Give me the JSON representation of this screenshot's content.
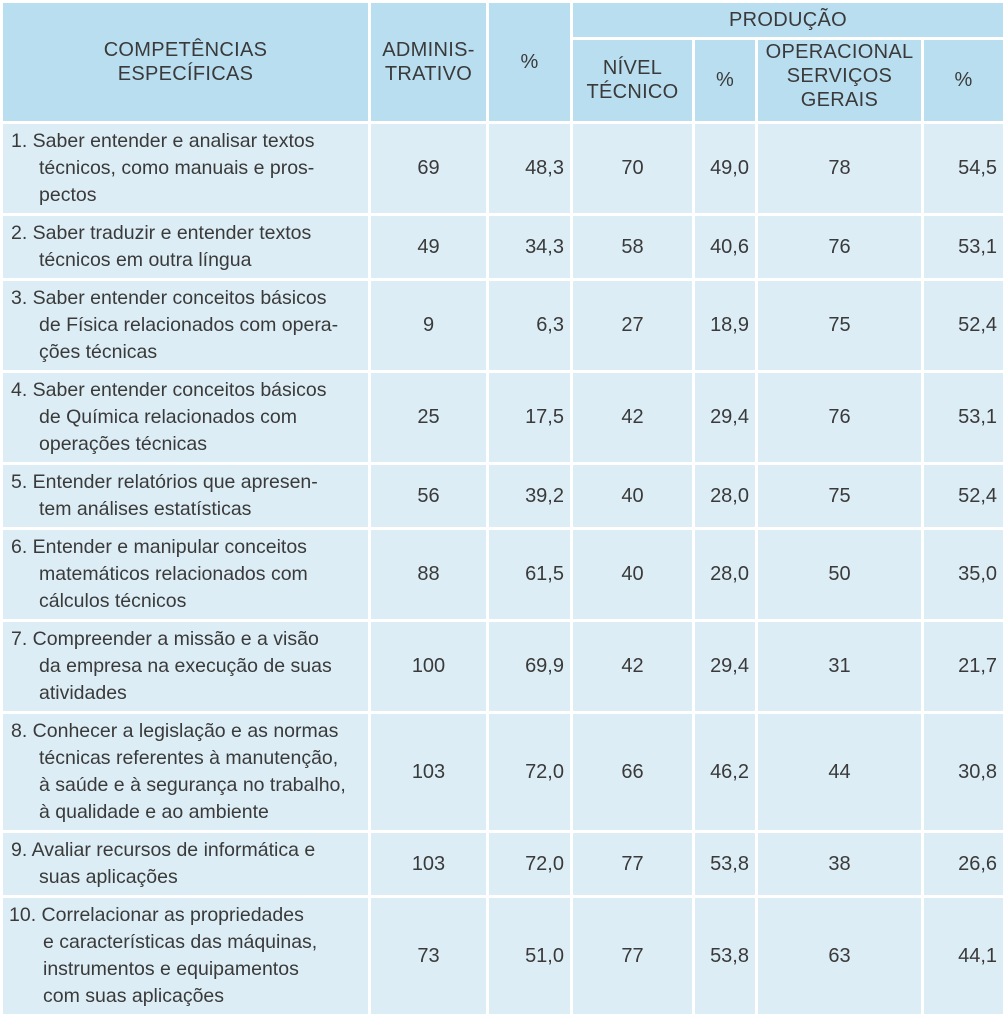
{
  "header": {
    "competencias": [
      "COMPETÊNCIAS",
      "ESPECÍFICAS"
    ],
    "administrativo": [
      "ADMINIS-",
      "TRATIVO"
    ],
    "pct": "%",
    "producao": "PRODUÇÃO",
    "nivel_tecnico": [
      "NÍVEL",
      "TÉCNICO"
    ],
    "operacional": [
      "OPERACIONAL",
      "SERVIÇOS",
      "GERAIS"
    ]
  },
  "rows": [
    {
      "desc": [
        "1. Saber entender e analisar textos",
        "técnicos, como manuais e pros-",
        "pectos"
      ],
      "adm": "69",
      "adm_pct": "48,3",
      "tec": "70",
      "tec_pct": "49,0",
      "op": "78",
      "op_pct": "54,5"
    },
    {
      "desc": [
        "2. Saber traduzir e entender textos",
        "técnicos em outra língua"
      ],
      "adm": "49",
      "adm_pct": "34,3",
      "tec": "58",
      "tec_pct": "40,6",
      "op": "76",
      "op_pct": "53,1"
    },
    {
      "desc": [
        "3. Saber entender conceitos básicos",
        "de Física relacionados com opera-",
        "ções técnicas"
      ],
      "adm": "9",
      "adm_pct": "6,3",
      "tec": "27",
      "tec_pct": "18,9",
      "op": "75",
      "op_pct": "52,4"
    },
    {
      "desc": [
        "4. Saber entender conceitos básicos",
        "de Química relacionados com",
        "operações técnicas"
      ],
      "adm": "25",
      "adm_pct": "17,5",
      "tec": "42",
      "tec_pct": "29,4",
      "op": "76",
      "op_pct": "53,1"
    },
    {
      "desc": [
        "5. Entender relatórios que apresen-",
        "tem análises estatísticas"
      ],
      "adm": "56",
      "adm_pct": "39,2",
      "tec": "40",
      "tec_pct": "28,0",
      "op": "75",
      "op_pct": "52,4"
    },
    {
      "desc": [
        "6. Entender e manipular conceitos",
        "matemáticos relacionados com",
        "cálculos técnicos"
      ],
      "adm": "88",
      "adm_pct": "61,5",
      "tec": "40",
      "tec_pct": "28,0",
      "op": "50",
      "op_pct": "35,0"
    },
    {
      "desc": [
        "7. Compreender a missão e a visão",
        "da empresa na execução de suas",
        "atividades"
      ],
      "adm": "100",
      "adm_pct": "69,9",
      "tec": "42",
      "tec_pct": "29,4",
      "op": "31",
      "op_pct": "21,7"
    },
    {
      "desc": [
        "8. Conhecer a legislação e as normas",
        "técnicas referentes à manutenção,",
        "à saúde e à segurança no trabalho,",
        "à qualidade e ao ambiente"
      ],
      "adm": "103",
      "adm_pct": "72,0",
      "tec": "66",
      "tec_pct": "46,2",
      "op": "44",
      "op_pct": "30,8"
    },
    {
      "desc": [
        "9. Avaliar recursos de informática e",
        "suas aplicações"
      ],
      "adm": "103",
      "adm_pct": "72,0",
      "tec": "77",
      "tec_pct": "53,8",
      "op": "38",
      "op_pct": "26,6"
    },
    {
      "desc": [
        "10. Correlacionar as propriedades",
        "e características das máquinas,",
        "instrumentos e equipamentos",
        "com suas aplicações"
      ],
      "adm": "73",
      "adm_pct": "51,0",
      "tec": "77",
      "tec_pct": "53,8",
      "op": "63",
      "op_pct": "44,1"
    }
  ]
}
